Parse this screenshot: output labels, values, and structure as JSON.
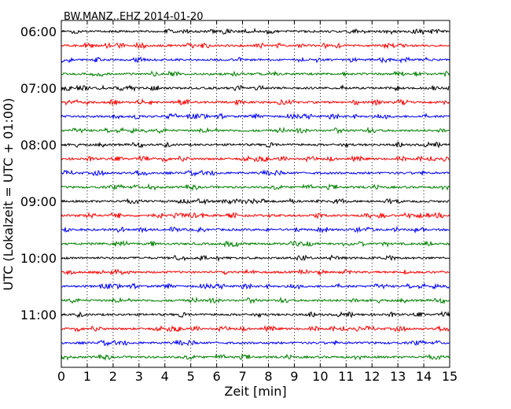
{
  "chart_data": {
    "type": "line",
    "title": "BW.MANZ..EHZ 2014-01-20",
    "xlabel": "Zeit  [min]",
    "ylabel": "UTC (Lokalzeit = UTC + 01:00)",
    "xlim": [
      0,
      15
    ],
    "x_ticks": [
      "0",
      "1",
      "2",
      "3",
      "4",
      "5",
      "6",
      "7",
      "8",
      "9",
      "10",
      "11",
      "12",
      "13",
      "14",
      "15"
    ],
    "y_ticks": [
      "06:00",
      "07:00",
      "08:00",
      "09:00",
      "10:00",
      "11:00"
    ],
    "traces_per_hour": 4,
    "trace_count": 24,
    "start_time": "06:00",
    "colors": [
      "#000000",
      "#ff0000",
      "#0000ff",
      "#008000"
    ],
    "grid": "vertical dotted"
  }
}
